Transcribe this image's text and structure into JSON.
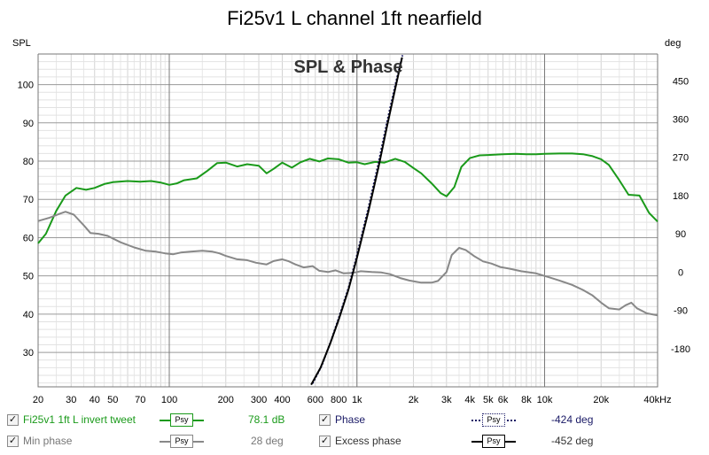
{
  "chart_data": {
    "type": "line",
    "title": "Fi25v1 L channel 1ft nearfield",
    "annotation": "SPL & Phase",
    "x_scale": "log",
    "xlim": [
      20,
      40000
    ],
    "x_ticks": [
      {
        "v": 20,
        "label": "20"
      },
      {
        "v": 30,
        "label": "30"
      },
      {
        "v": 40,
        "label": "40"
      },
      {
        "v": 50,
        "label": "50"
      },
      {
        "v": 70,
        "label": "70"
      },
      {
        "v": 100,
        "label": "100"
      },
      {
        "v": 200,
        "label": "200"
      },
      {
        "v": 300,
        "label": "300"
      },
      {
        "v": 400,
        "label": "400"
      },
      {
        "v": 600,
        "label": "600"
      },
      {
        "v": 800,
        "label": "800"
      },
      {
        "v": 1000,
        "label": "1k"
      },
      {
        "v": 2000,
        "label": "2k"
      },
      {
        "v": 3000,
        "label": "3k"
      },
      {
        "v": 4000,
        "label": "4k"
      },
      {
        "v": 5000,
        "label": "5k"
      },
      {
        "v": 6000,
        "label": "6k"
      },
      {
        "v": 8000,
        "label": "8k"
      },
      {
        "v": 10000,
        "label": "10k"
      },
      {
        "v": 20000,
        "label": "20k"
      },
      {
        "v": 40000,
        "label": "40kHz"
      }
    ],
    "ylabel_left": "SPL",
    "ylabel_right": "deg",
    "ylim_left": [
      21,
      108
    ],
    "ylim_right": [
      -270,
      513
    ],
    "y_ticks_left": [
      30,
      40,
      50,
      60,
      70,
      80,
      90,
      100
    ],
    "y_ticks_right": [
      -180,
      -90,
      0,
      90,
      180,
      270,
      360,
      450
    ],
    "grid": true,
    "colors": {
      "spl": "#1a9a1a",
      "min_phase": "#888888",
      "phase": "#1a1a66",
      "excess_phase": "#000000",
      "grid_major": "#9a9a9a",
      "grid_minor": "#d4d4d4",
      "axis_text": "#000000"
    },
    "series": [
      {
        "name": "Fi25v1 1ft L invert tweet",
        "axis": "left",
        "x": [
          20,
          22,
          25,
          28,
          32,
          36,
          40,
          45,
          50,
          60,
          70,
          80,
          90,
          100,
          110,
          120,
          140,
          160,
          180,
          200,
          230,
          260,
          300,
          330,
          360,
          400,
          450,
          500,
          560,
          630,
          700,
          800,
          900,
          1000,
          1100,
          1250,
          1400,
          1600,
          1800,
          2000,
          2200,
          2500,
          2800,
          3000,
          3300,
          3600,
          4000,
          4500,
          5000,
          6000,
          7000,
          8000,
          9000,
          10000,
          12000,
          14000,
          16000,
          18000,
          20000,
          22000,
          25000,
          28000,
          32000,
          36000,
          40000
        ],
        "y": [
          58.5,
          61,
          67,
          71,
          73,
          72.5,
          73,
          74,
          74.5,
          74.8,
          74.6,
          74.8,
          74.4,
          73.8,
          74.2,
          75,
          75.5,
          77.5,
          79.5,
          79.6,
          78.6,
          79.2,
          78.8,
          76.8,
          78,
          79.6,
          78.3,
          79.7,
          80.6,
          79.9,
          80.7,
          80.5,
          79.6,
          79.7,
          79.2,
          79.8,
          79.6,
          80.6,
          79.8,
          78.2,
          76.8,
          74.2,
          71.6,
          70.8,
          73.2,
          78.5,
          80.8,
          81.5,
          81.6,
          81.8,
          81.9,
          81.8,
          81.8,
          81.9,
          82,
          82,
          81.8,
          81.3,
          80.5,
          79,
          75,
          71.2,
          71,
          66.5,
          64.2
        ]
      },
      {
        "name": "Min phase",
        "axis": "right",
        "x": [
          20,
          23,
          26,
          28,
          31,
          35,
          38,
          42,
          47,
          55,
          65,
          75,
          85,
          95,
          105,
          115,
          130,
          150,
          170,
          185,
          200,
          230,
          260,
          290,
          330,
          360,
          400,
          430,
          470,
          520,
          580,
          630,
          700,
          770,
          850,
          950,
          1050,
          1200,
          1350,
          1500,
          1700,
          1900,
          2200,
          2500,
          2700,
          3000,
          3200,
          3500,
          3800,
          4200,
          4700,
          5200,
          5800,
          6500,
          7500,
          9000,
          10500,
          12000,
          14000,
          16000,
          18000,
          20000,
          22000,
          25000,
          27000,
          29000,
          31000,
          35000,
          40000
        ],
        "y": [
          120,
          128,
          137,
          142,
          135,
          110,
          92,
          90,
          85,
          70,
          58,
          50,
          48,
          44,
          42,
          46,
          48,
          50,
          48,
          44,
          38,
          30,
          28,
          22,
          18,
          26,
          30,
          26,
          18,
          11,
          14,
          3,
          0,
          4,
          -3,
          -2,
          2,
          0,
          -1,
          -5,
          -14,
          -20,
          -25,
          -25,
          -21,
          0,
          40,
          57,
          52,
          38,
          25,
          20,
          12,
          8,
          2,
          -3,
          -12,
          -20,
          -30,
          -42,
          -55,
          -72,
          -85,
          -88,
          -78,
          -72,
          -85,
          -97,
          -102
        ]
      },
      {
        "name": "Phase",
        "axis": "right",
        "style": "dotted",
        "x": [
          580,
          650,
          730,
          800,
          900,
          1000,
          1150,
          1300,
          1450,
          1600,
          1750
        ],
        "y": [
          -262,
          -220,
          -160,
          -108,
          -38,
          40,
          150,
          255,
          355,
          440,
          510
        ]
      },
      {
        "name": "Excess phase",
        "axis": "right",
        "x": [
          570,
          640,
          720,
          800,
          900,
          1000,
          1150,
          1300,
          1450,
          1600,
          1740
        ],
        "y": [
          -265,
          -225,
          -168,
          -112,
          -42,
          34,
          142,
          245,
          345,
          432,
          505
        ]
      }
    ]
  },
  "legend": [
    {
      "label": "Fi25v1 1ft L invert tweet",
      "sample": "Psy",
      "value": "78.1 dB",
      "color": "#1a9a1a",
      "value_color": "#1a9a1a",
      "checked": true,
      "line_style": "solid"
    },
    {
      "label": "Min phase",
      "sample": "Psy",
      "value": "28 deg",
      "color": "#888888",
      "value_color": "#777777",
      "checked": true,
      "line_style": "solid"
    },
    {
      "label": "Phase",
      "sample": "Psy",
      "value": "-424 deg",
      "color": "#1a1a66",
      "value_color": "#1a1a66",
      "checked": true,
      "line_style": "dotted"
    },
    {
      "label": "Excess phase",
      "sample": "Psy",
      "value": "-452 deg",
      "color": "#000000",
      "value_color": "#333333",
      "checked": true,
      "line_style": "solid"
    }
  ]
}
